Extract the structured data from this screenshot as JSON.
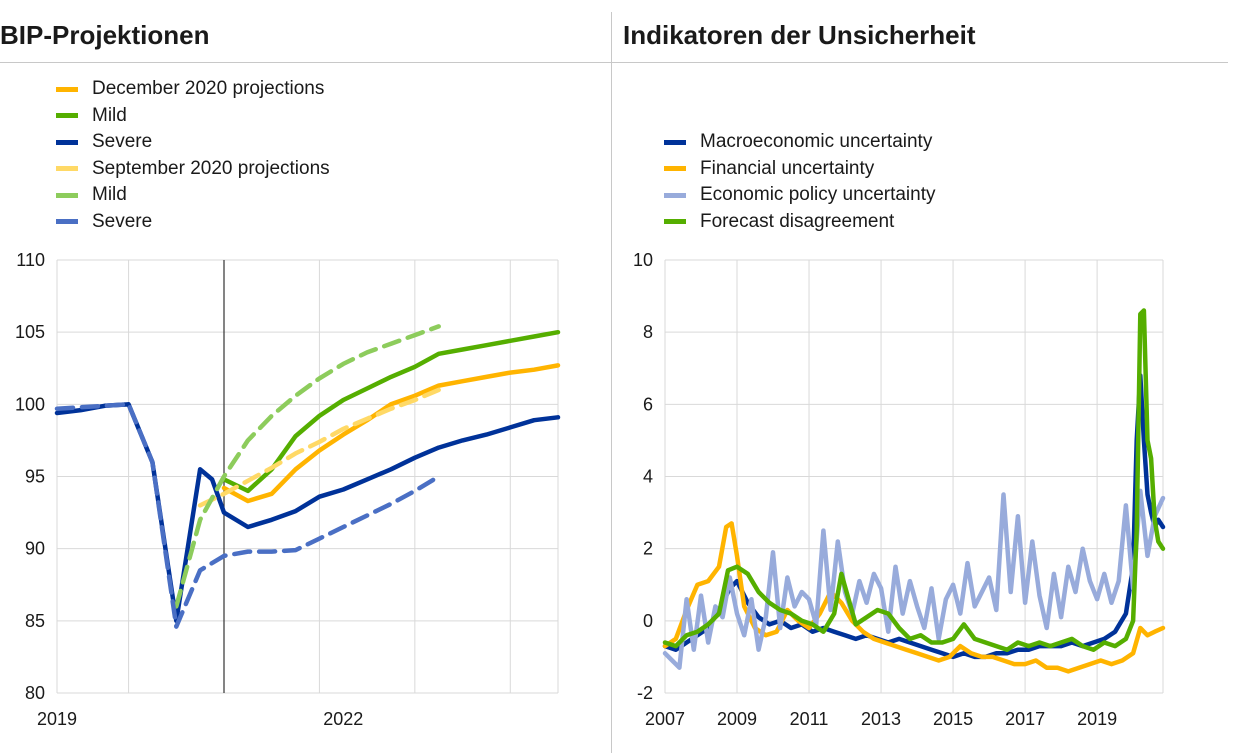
{
  "panels": {
    "left_title": "BIP-Projektionen",
    "right_title": "Indikatoren der Unsicherheit"
  },
  "chart_data": [
    {
      "type": "line",
      "title": "BIP-Projektionen",
      "xlabel": "",
      "ylabel": "",
      "ylim": [
        80,
        110
      ],
      "yticks": [
        80,
        85,
        90,
        95,
        100,
        105,
        110
      ],
      "xlim": [
        2019.0,
        2024.25
      ],
      "xticks": [
        {
          "value": 2019.0,
          "label": "2019"
        },
        {
          "value": 2022.0,
          "label": "2022"
        }
      ],
      "grid": true,
      "vertical_marker": 2020.75,
      "legend_position": "top-left",
      "series": [
        {
          "name": "December 2020 projections",
          "color": "#FFB400",
          "dash": false,
          "x": [
            2020.75,
            2021.0,
            2021.25,
            2021.5,
            2021.75,
            2022.0,
            2022.25,
            2022.5,
            2022.75,
            2023.0,
            2023.25,
            2023.5,
            2023.75,
            2024.0,
            2024.25
          ],
          "y": [
            94.2,
            93.3,
            93.8,
            95.5,
            96.8,
            97.9,
            98.9,
            100.0,
            100.6,
            101.3,
            101.6,
            101.9,
            102.2,
            102.4,
            102.7
          ]
        },
        {
          "name": "Mild",
          "color": "#55AE00",
          "dash": false,
          "x": [
            2020.75,
            2021.0,
            2021.25,
            2021.5,
            2021.75,
            2022.0,
            2022.25,
            2022.5,
            2022.75,
            2023.0,
            2023.25,
            2023.5,
            2023.75,
            2024.0,
            2024.25
          ],
          "y": [
            94.8,
            94.0,
            95.5,
            97.8,
            99.2,
            100.3,
            101.1,
            101.9,
            102.6,
            103.5,
            103.8,
            104.1,
            104.4,
            104.7,
            105.0
          ]
        },
        {
          "name": "Severe",
          "color": "#003299",
          "dash": false,
          "x": [
            2019.0,
            2019.25,
            2019.5,
            2019.75,
            2020.0,
            2020.25,
            2020.5,
            2020.625,
            2020.75,
            2021.0,
            2021.25,
            2021.5,
            2021.75,
            2022.0,
            2022.25,
            2022.5,
            2022.75,
            2023.0,
            2023.25,
            2023.5,
            2023.75,
            2024.0,
            2024.25
          ],
          "y": [
            99.4,
            99.6,
            99.9,
            100.0,
            96.0,
            85.0,
            95.5,
            94.8,
            92.5,
            91.5,
            92.0,
            92.6,
            93.6,
            94.1,
            94.8,
            95.5,
            96.3,
            97.0,
            97.5,
            97.9,
            98.4,
            98.9,
            99.1
          ]
        },
        {
          "name": "September 2020 projections",
          "color": "#FFD966",
          "dash": true,
          "x": [
            2020.5,
            2020.75,
            2021.0,
            2021.25,
            2021.5,
            2021.75,
            2022.0,
            2022.25,
            2022.5,
            2022.75,
            2023.0
          ],
          "y": [
            93.0,
            93.8,
            94.7,
            95.6,
            96.6,
            97.4,
            98.3,
            99.0,
            99.7,
            100.3,
            101.0
          ]
        },
        {
          "name": "Mild",
          "color": "#8DCC5C",
          "dash": true,
          "x": [
            2020.25,
            2020.5,
            2020.75,
            2021.0,
            2021.25,
            2021.5,
            2021.75,
            2022.0,
            2022.25,
            2022.5,
            2022.75,
            2023.0
          ],
          "y": [
            86.0,
            92.0,
            95.0,
            97.5,
            99.2,
            100.6,
            101.8,
            102.8,
            103.6,
            104.2,
            104.8,
            105.4
          ]
        },
        {
          "name": "Severe",
          "color": "#4A6FC4",
          "dash": true,
          "x": [
            2019.0,
            2019.25,
            2019.5,
            2019.75,
            2020.0,
            2020.25,
            2020.5,
            2020.75,
            2021.0,
            2021.25,
            2021.5,
            2021.75,
            2022.0,
            2022.25,
            2022.5,
            2022.75,
            2023.0
          ],
          "y": [
            99.7,
            99.8,
            99.9,
            100.0,
            96.0,
            84.6,
            88.5,
            89.5,
            89.8,
            89.8,
            89.9,
            90.7,
            91.5,
            92.3,
            93.1,
            94.0,
            95.0
          ]
        }
      ]
    },
    {
      "type": "line",
      "title": "Indikatoren der Unsicherheit",
      "xlabel": "",
      "ylabel": "",
      "ylim": [
        -2,
        10
      ],
      "yticks": [
        -2,
        0,
        2,
        4,
        6,
        8,
        10
      ],
      "xlim": [
        2007.0,
        2020.83
      ],
      "xticks": [
        {
          "value": 2007,
          "label": "2007"
        },
        {
          "value": 2009,
          "label": "2009"
        },
        {
          "value": 2011,
          "label": "2011"
        },
        {
          "value": 2013,
          "label": "2013"
        },
        {
          "value": 2015,
          "label": "2015"
        },
        {
          "value": 2017,
          "label": "2017"
        },
        {
          "value": 2019,
          "label": "2019"
        }
      ],
      "grid": true,
      "legend_position": "top-left",
      "series": [
        {
          "name": "Macroeconomic uncertainty",
          "color": "#003299",
          "dash": false,
          "x": [
            2007.0,
            2007.3,
            2007.6,
            2007.9,
            2008.2,
            2008.5,
            2008.8,
            2009.0,
            2009.3,
            2009.6,
            2009.9,
            2010.2,
            2010.5,
            2010.8,
            2011.1,
            2011.4,
            2011.7,
            2012.0,
            2012.3,
            2012.6,
            2012.9,
            2013.2,
            2013.5,
            2013.8,
            2014.1,
            2014.4,
            2014.7,
            2015.0,
            2015.3,
            2015.6,
            2015.9,
            2016.2,
            2016.5,
            2016.8,
            2017.1,
            2017.4,
            2017.7,
            2018.0,
            2018.3,
            2018.6,
            2018.9,
            2019.2,
            2019.5,
            2019.8,
            2020.0,
            2020.1,
            2020.2,
            2020.3,
            2020.4,
            2020.5,
            2020.6,
            2020.7,
            2020.83
          ],
          "y": [
            -0.7,
            -0.8,
            -0.6,
            -0.4,
            -0.2,
            0.3,
            0.9,
            1.1,
            0.5,
            0.1,
            -0.1,
            0.0,
            -0.2,
            -0.1,
            -0.3,
            -0.2,
            -0.3,
            -0.4,
            -0.5,
            -0.4,
            -0.5,
            -0.6,
            -0.5,
            -0.6,
            -0.7,
            -0.8,
            -0.9,
            -1.0,
            -0.9,
            -1.0,
            -1.0,
            -0.9,
            -0.9,
            -0.8,
            -0.8,
            -0.7,
            -0.7,
            -0.7,
            -0.6,
            -0.7,
            -0.6,
            -0.5,
            -0.3,
            0.2,
            1.5,
            5.0,
            6.8,
            5.0,
            3.5,
            3.0,
            2.6,
            2.8,
            2.6
          ]
        },
        {
          "name": "Financial uncertainty",
          "color": "#FFB400",
          "dash": false,
          "x": [
            2007.0,
            2007.3,
            2007.6,
            2007.9,
            2008.2,
            2008.5,
            2008.7,
            2008.85,
            2009.0,
            2009.2,
            2009.5,
            2009.8,
            2010.1,
            2010.4,
            2010.7,
            2011.0,
            2011.3,
            2011.6,
            2011.9,
            2012.2,
            2012.5,
            2012.8,
            2013.1,
            2013.4,
            2013.7,
            2014.0,
            2014.3,
            2014.6,
            2014.9,
            2015.2,
            2015.5,
            2015.8,
            2016.1,
            2016.4,
            2016.7,
            2017.0,
            2017.3,
            2017.6,
            2017.9,
            2018.2,
            2018.5,
            2018.8,
            2019.1,
            2019.4,
            2019.7,
            2020.0,
            2020.2,
            2020.4,
            2020.6,
            2020.83
          ],
          "y": [
            -0.7,
            -0.5,
            0.3,
            1.0,
            1.1,
            1.5,
            2.6,
            2.7,
            1.8,
            0.4,
            -0.2,
            -0.4,
            -0.3,
            0.3,
            0.0,
            -0.2,
            0.2,
            0.8,
            0.5,
            0.0,
            -0.3,
            -0.5,
            -0.6,
            -0.7,
            -0.8,
            -0.9,
            -1.0,
            -1.1,
            -1.0,
            -0.7,
            -0.9,
            -1.0,
            -1.0,
            -1.1,
            -1.2,
            -1.2,
            -1.1,
            -1.3,
            -1.3,
            -1.4,
            -1.3,
            -1.2,
            -1.1,
            -1.2,
            -1.1,
            -0.9,
            -0.2,
            -0.4,
            -0.3,
            -0.2
          ]
        },
        {
          "name": "Economic policy uncertainty",
          "color": "#98ABDB",
          "dash": false,
          "x": [
            2007.0,
            2007.2,
            2007.4,
            2007.6,
            2007.8,
            2008.0,
            2008.2,
            2008.4,
            2008.6,
            2008.8,
            2009.0,
            2009.2,
            2009.4,
            2009.6,
            2009.8,
            2010.0,
            2010.2,
            2010.4,
            2010.6,
            2010.8,
            2011.0,
            2011.2,
            2011.4,
            2011.6,
            2011.8,
            2012.0,
            2012.2,
            2012.4,
            2012.6,
            2012.8,
            2013.0,
            2013.2,
            2013.4,
            2013.6,
            2013.8,
            2014.0,
            2014.2,
            2014.4,
            2014.6,
            2014.8,
            2015.0,
            2015.2,
            2015.4,
            2015.6,
            2015.8,
            2016.0,
            2016.2,
            2016.4,
            2016.6,
            2016.8,
            2017.0,
            2017.2,
            2017.4,
            2017.6,
            2017.8,
            2018.0,
            2018.2,
            2018.4,
            2018.6,
            2018.8,
            2019.0,
            2019.2,
            2019.4,
            2019.6,
            2019.8,
            2020.0,
            2020.2,
            2020.4,
            2020.6,
            2020.83
          ],
          "y": [
            -0.9,
            -1.1,
            -1.3,
            0.6,
            -0.8,
            0.7,
            -0.6,
            0.4,
            0.1,
            1.2,
            0.2,
            -0.4,
            0.6,
            -0.8,
            0.1,
            1.9,
            -0.2,
            1.2,
            0.4,
            0.8,
            0.6,
            -0.1,
            2.5,
            0.3,
            2.2,
            0.8,
            0.2,
            1.1,
            0.5,
            1.3,
            0.9,
            -0.3,
            1.5,
            0.2,
            1.1,
            0.4,
            -0.2,
            0.9,
            -0.5,
            0.6,
            1.0,
            0.2,
            1.6,
            0.4,
            0.8,
            1.2,
            0.3,
            3.5,
            0.8,
            2.9,
            0.5,
            2.2,
            0.7,
            -0.2,
            1.3,
            0.1,
            1.5,
            0.8,
            2.0,
            1.1,
            0.6,
            1.3,
            0.5,
            1.1,
            3.2,
            0.9,
            3.6,
            1.8,
            2.9,
            3.4
          ]
        },
        {
          "name": "Forecast disagreement",
          "color": "#55AE00",
          "dash": false,
          "x": [
            2007.0,
            2007.3,
            2007.6,
            2007.9,
            2008.2,
            2008.5,
            2008.75,
            2009.0,
            2009.3,
            2009.6,
            2009.9,
            2010.2,
            2010.5,
            2010.8,
            2011.1,
            2011.4,
            2011.7,
            2011.9,
            2012.1,
            2012.3,
            2012.6,
            2012.9,
            2013.2,
            2013.5,
            2013.8,
            2014.1,
            2014.4,
            2014.7,
            2015.0,
            2015.3,
            2015.6,
            2015.9,
            2016.2,
            2016.5,
            2016.8,
            2017.1,
            2017.4,
            2017.7,
            2018.0,
            2018.3,
            2018.6,
            2018.9,
            2019.2,
            2019.5,
            2019.8,
            2020.0,
            2020.1,
            2020.2,
            2020.3,
            2020.4,
            2020.5,
            2020.6,
            2020.7,
            2020.83
          ],
          "y": [
            -0.6,
            -0.7,
            -0.4,
            -0.3,
            -0.1,
            0.2,
            1.4,
            1.5,
            1.3,
            0.8,
            0.5,
            0.3,
            0.2,
            0.0,
            -0.1,
            -0.3,
            0.2,
            1.3,
            0.6,
            -0.1,
            0.1,
            0.3,
            0.2,
            -0.2,
            -0.5,
            -0.4,
            -0.6,
            -0.6,
            -0.5,
            -0.1,
            -0.5,
            -0.6,
            -0.7,
            -0.8,
            -0.6,
            -0.7,
            -0.6,
            -0.7,
            -0.6,
            -0.5,
            -0.7,
            -0.8,
            -0.6,
            -0.7,
            -0.5,
            0.0,
            2.5,
            8.5,
            8.6,
            5.0,
            4.5,
            2.8,
            2.2,
            2.0
          ]
        }
      ]
    }
  ]
}
